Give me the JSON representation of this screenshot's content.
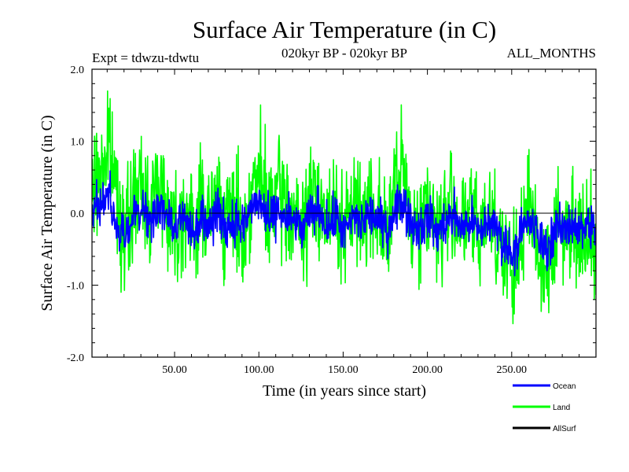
{
  "chart_data": {
    "type": "line",
    "title": "Surface Air Temperature (in C)",
    "subtitle_left": "Expt = tdwzu-tdwtu",
    "subtitle_center": "020kyr BP - 020kyr BP",
    "subtitle_right": "ALL_MONTHS",
    "xlabel": "Time (in years since start)",
    "ylabel": "Surface Air Temperature (in C)",
    "xlim": [
      1,
      300
    ],
    "ylim": [
      -2.0,
      2.0
    ],
    "x_ticks": [
      50,
      100,
      150,
      200,
      250
    ],
    "x_tick_labels": [
      "50.00",
      "100.00",
      "150.00",
      "200.00",
      "250.00"
    ],
    "y_ticks": [
      -2.0,
      -1.0,
      0.0,
      1.0,
      2.0
    ],
    "y_tick_labels": [
      "-2.0",
      "-1.0",
      "0.0",
      "1.0",
      "2.0"
    ],
    "zero_line": true,
    "grid": false,
    "legend_position": "bottom-right",
    "series": [
      {
        "name": "Land",
        "color": "#00ff00",
        "x": [
          1,
          6,
          11,
          16,
          21,
          26,
          31,
          36,
          41,
          46,
          51,
          56,
          61,
          66,
          71,
          76,
          81,
          86,
          91,
          96,
          101,
          106,
          111,
          116,
          121,
          126,
          131,
          136,
          141,
          146,
          151,
          156,
          161,
          166,
          171,
          176,
          181,
          186,
          191,
          196,
          201,
          206,
          211,
          216,
          221,
          226,
          231,
          236,
          241,
          246,
          251,
          256,
          261,
          266,
          271,
          276,
          281,
          286,
          291,
          296,
          300
        ],
        "values": [
          0.2,
          0.6,
          0.9,
          0.3,
          -0.4,
          0.2,
          0.3,
          0.1,
          0.5,
          0.0,
          -0.2,
          0.1,
          -0.3,
          0.2,
          -0.1,
          0.3,
          -0.2,
          0.1,
          -0.4,
          0.4,
          0.5,
          -0.1,
          0.3,
          0.1,
          0.0,
          -0.3,
          0.2,
          0.3,
          -0.2,
          0.1,
          -0.4,
          0.2,
          -0.1,
          0.2,
          0.0,
          -0.3,
          0.4,
          0.5,
          -0.1,
          -0.2,
          0.2,
          -0.3,
          0.0,
          0.1,
          -0.2,
          0.0,
          -0.4,
          0.1,
          -0.2,
          -0.6,
          -0.9,
          -0.3,
          0.1,
          -0.5,
          -0.8,
          -0.2,
          -0.3,
          0.0,
          -0.4,
          -0.1,
          -0.3
        ],
        "amplitude": 0.55
      },
      {
        "name": "Ocean",
        "color": "#0000ff",
        "x": [
          1,
          6,
          11,
          16,
          21,
          26,
          31,
          36,
          41,
          46,
          51,
          56,
          61,
          66,
          71,
          76,
          81,
          86,
          91,
          96,
          101,
          106,
          111,
          116,
          121,
          126,
          131,
          136,
          141,
          146,
          151,
          156,
          161,
          166,
          171,
          176,
          181,
          186,
          191,
          196,
          201,
          206,
          211,
          216,
          221,
          226,
          231,
          236,
          241,
          246,
          251,
          256,
          261,
          266,
          271,
          276,
          281,
          286,
          291,
          296,
          300
        ],
        "values": [
          -0.05,
          0.1,
          0.2,
          -0.2,
          -0.3,
          0.0,
          0.05,
          -0.1,
          0.1,
          -0.05,
          -0.2,
          0.0,
          -0.25,
          -0.05,
          -0.15,
          0.0,
          -0.2,
          -0.1,
          -0.2,
          0.1,
          0.15,
          -0.15,
          0.05,
          -0.1,
          -0.1,
          -0.25,
          0.0,
          0.05,
          -0.2,
          -0.05,
          -0.3,
          -0.05,
          -0.15,
          0.0,
          -0.1,
          -0.25,
          0.1,
          0.15,
          -0.15,
          -0.2,
          -0.05,
          -0.3,
          -0.1,
          -0.05,
          -0.2,
          -0.1,
          -0.3,
          -0.1,
          -0.2,
          -0.45,
          -0.55,
          -0.25,
          -0.1,
          -0.35,
          -0.5,
          -0.2,
          -0.25,
          -0.1,
          -0.25,
          -0.15,
          -0.3
        ],
        "amplitude": 0.22
      }
    ],
    "legend": [
      {
        "label": "Ocean",
        "color": "#0000ff"
      },
      {
        "label": "Land",
        "color": "#00ff00"
      },
      {
        "label": "AllSurf",
        "color": "#000000"
      }
    ]
  }
}
